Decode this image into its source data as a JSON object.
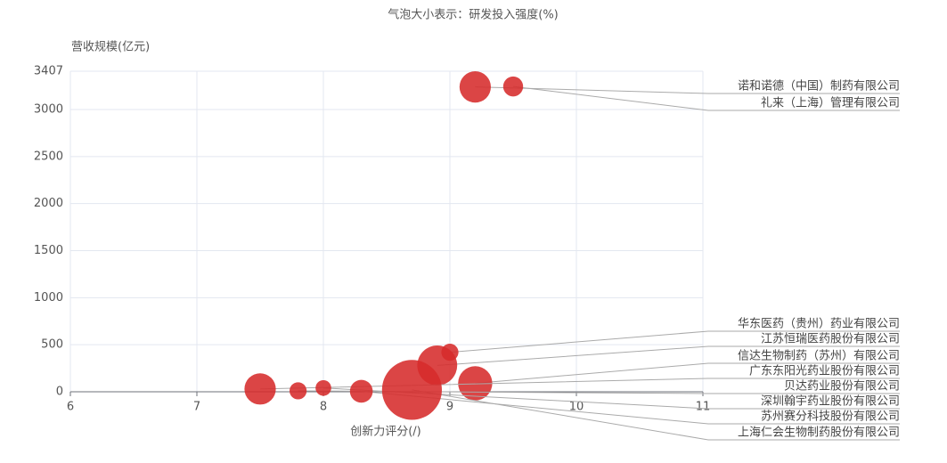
{
  "chart_data": {
    "type": "bubble",
    "title": "气泡大小表示：研发投入强度(%)",
    "y_label": "营收规模(亿元)",
    "x_label": "创新力评分(/)",
    "labels": [
      "诺和诺德（中国）制药有限公司",
      "礼来（上海）管理有限公司",
      "华东医药（贵州）药业有限公司",
      "江苏恒瑞医药股份有限公司",
      "信达生物制药（苏州）有限公司",
      "广东东阳光药业股份有限公司",
      "贝达药业股份有限公司",
      "深圳翰宇药业股份有限公司",
      "苏州赛分科技股份有限公司",
      "上海仁会生物制药股份有限公司"
    ],
    "x": [
      9.2,
      9.5,
      9.0,
      8.9,
      9.2,
      7.5,
      7.8,
      8.0,
      8.3,
      8.7
    ],
    "values": [
      3240,
      3245,
      420,
      280,
      90,
      30,
      10,
      40,
      5,
      20
    ],
    "sizes": [
      11,
      7,
      6,
      14,
      12,
      11,
      6,
      5.5,
      8,
      21
    ],
    "color": "#d62b2b",
    "xlim": [
      6,
      11
    ],
    "xticks": [
      6,
      7,
      8,
      9,
      10,
      11
    ],
    "ylim": [
      0,
      3407
    ],
    "yticks": [
      0,
      500,
      1000,
      1500,
      2000,
      2500,
      3000,
      3407
    ],
    "grid": true
  }
}
